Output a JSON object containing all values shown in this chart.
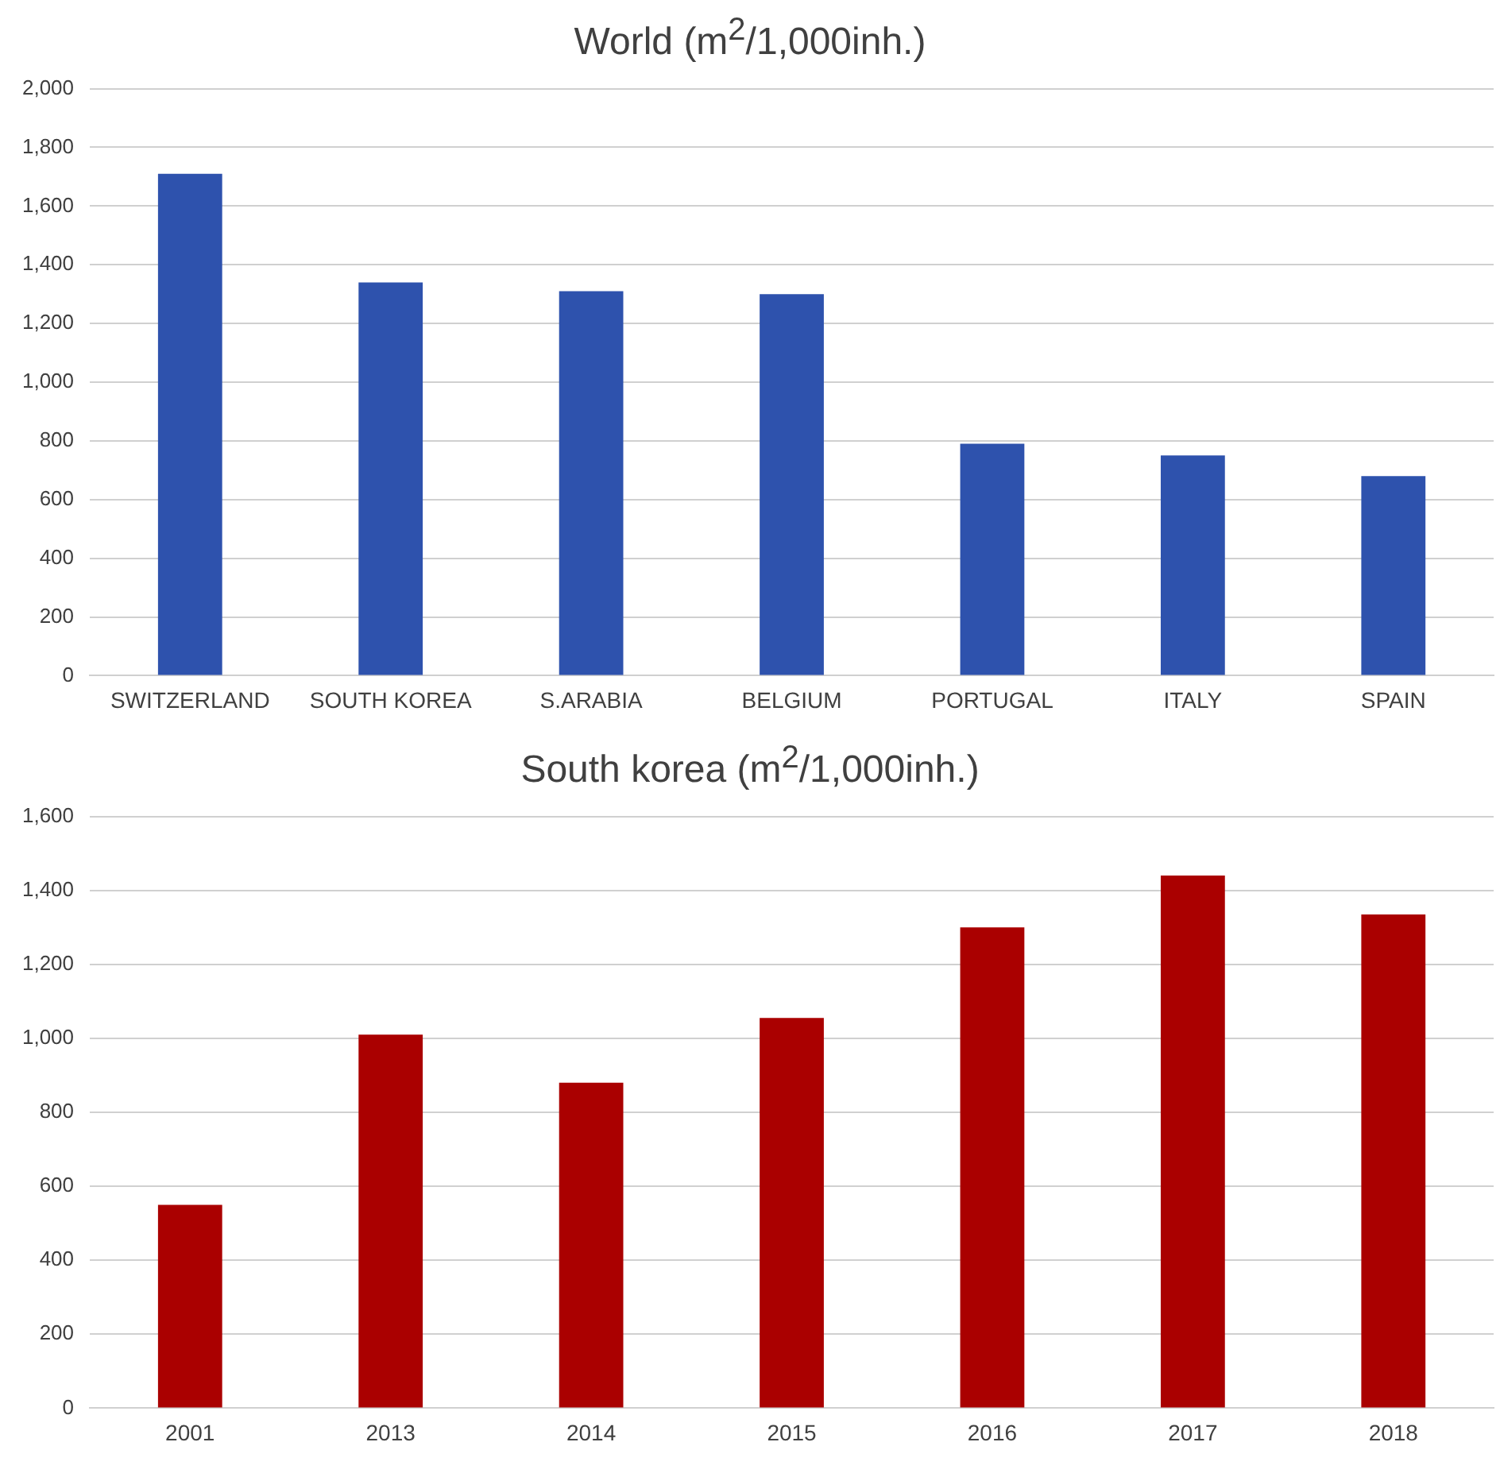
{
  "chart_data": [
    {
      "type": "bar",
      "title": "World (m$^{2}$/1,000inh.)",
      "categories": [
        "SWITZERLAND",
        "SOUTH KOREA",
        "S.ARABIA",
        "BELGIUM",
        "PORTUGAL",
        "ITALY",
        "SPAIN"
      ],
      "values": [
        1710,
        1340,
        1310,
        1300,
        790,
        750,
        680
      ],
      "color": "#2e52ad",
      "ylim": [
        0,
        2000
      ],
      "yticks": [
        0,
        {
          "value": 200,
          "label": "200"
        },
        {
          "value": 400,
          "label": "400"
        },
        {
          "value": 600,
          "label": "600"
        },
        {
          "value": 800,
          "label": "800"
        },
        {
          "value": 1000,
          "label": "1,000"
        },
        {
          "value": 1200,
          "label": "1,200"
        },
        {
          "value": 1400,
          "label": "1,400"
        },
        {
          "value": 1600,
          "label": "1,600"
        },
        {
          "value": 1800,
          "label": "1,800"
        },
        {
          "value": 2000,
          "label": "2,000"
        }
      ],
      "grid": "y"
    },
    {
      "type": "bar",
      "title": "South korea (m$^{2}$/1,000inh.)",
      "categories": [
        "2001",
        "2013",
        "2014",
        "2015",
        "2016",
        "2017",
        "2018"
      ],
      "values": [
        550,
        1010,
        880,
        1055,
        1300,
        1440,
        1335
      ],
      "color": "#aa0000",
      "ylim": [
        0,
        1600
      ],
      "yticks": [
        0,
        {
          "value": 200,
          "label": "200"
        },
        {
          "value": 400,
          "label": "400"
        },
        {
          "value": 600,
          "label": "600"
        },
        {
          "value": 800,
          "label": "800"
        },
        {
          "value": 1000,
          "label": "1,000"
        },
        {
          "value": 1200,
          "label": "1,200"
        },
        {
          "value": 1400,
          "label": "1,400"
        },
        {
          "value": 1600,
          "label": "1,600"
        }
      ],
      "grid": "y"
    }
  ]
}
